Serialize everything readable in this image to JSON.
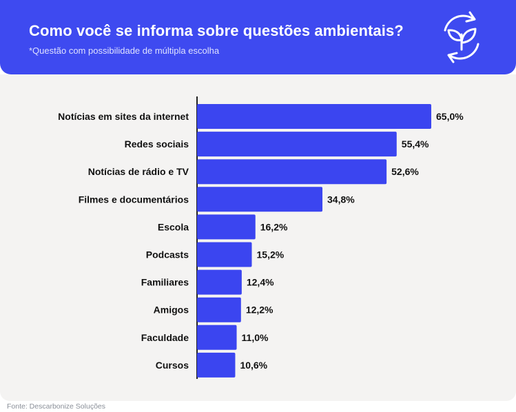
{
  "header": {
    "title": "Como você se informa sobre questões ambientais?",
    "subtitle": "*Questão com possibilidade de múltipla escolha",
    "icon": "recycle-leaf-icon"
  },
  "colors": {
    "header_bg": "#3e4af0",
    "bar": "#3b45f0",
    "panel_bg": "#f4f3f2",
    "text": "#111111"
  },
  "chart_data": {
    "type": "bar",
    "orientation": "horizontal",
    "categories": [
      "Notícias em sites da internet",
      "Redes sociais",
      "Notícias de rádio e TV",
      "Filmes e documentários",
      "Escola",
      "Podcasts",
      "Familiares",
      "Amigos",
      "Faculdade",
      "Cursos"
    ],
    "values": [
      65.0,
      55.4,
      52.6,
      34.8,
      16.2,
      15.2,
      12.4,
      12.2,
      11.0,
      10.6
    ],
    "value_labels": [
      "65,0%",
      "55,4%",
      "52,6%",
      "34,8%",
      "16,2%",
      "15,2%",
      "12,4%",
      "12,2%",
      "11,0%",
      "10,6%"
    ],
    "unit": "%",
    "xlim": [
      0,
      65
    ],
    "grid": false,
    "legend": "none"
  },
  "footer": {
    "source": "Fonte: Descarbonize Soluções"
  }
}
